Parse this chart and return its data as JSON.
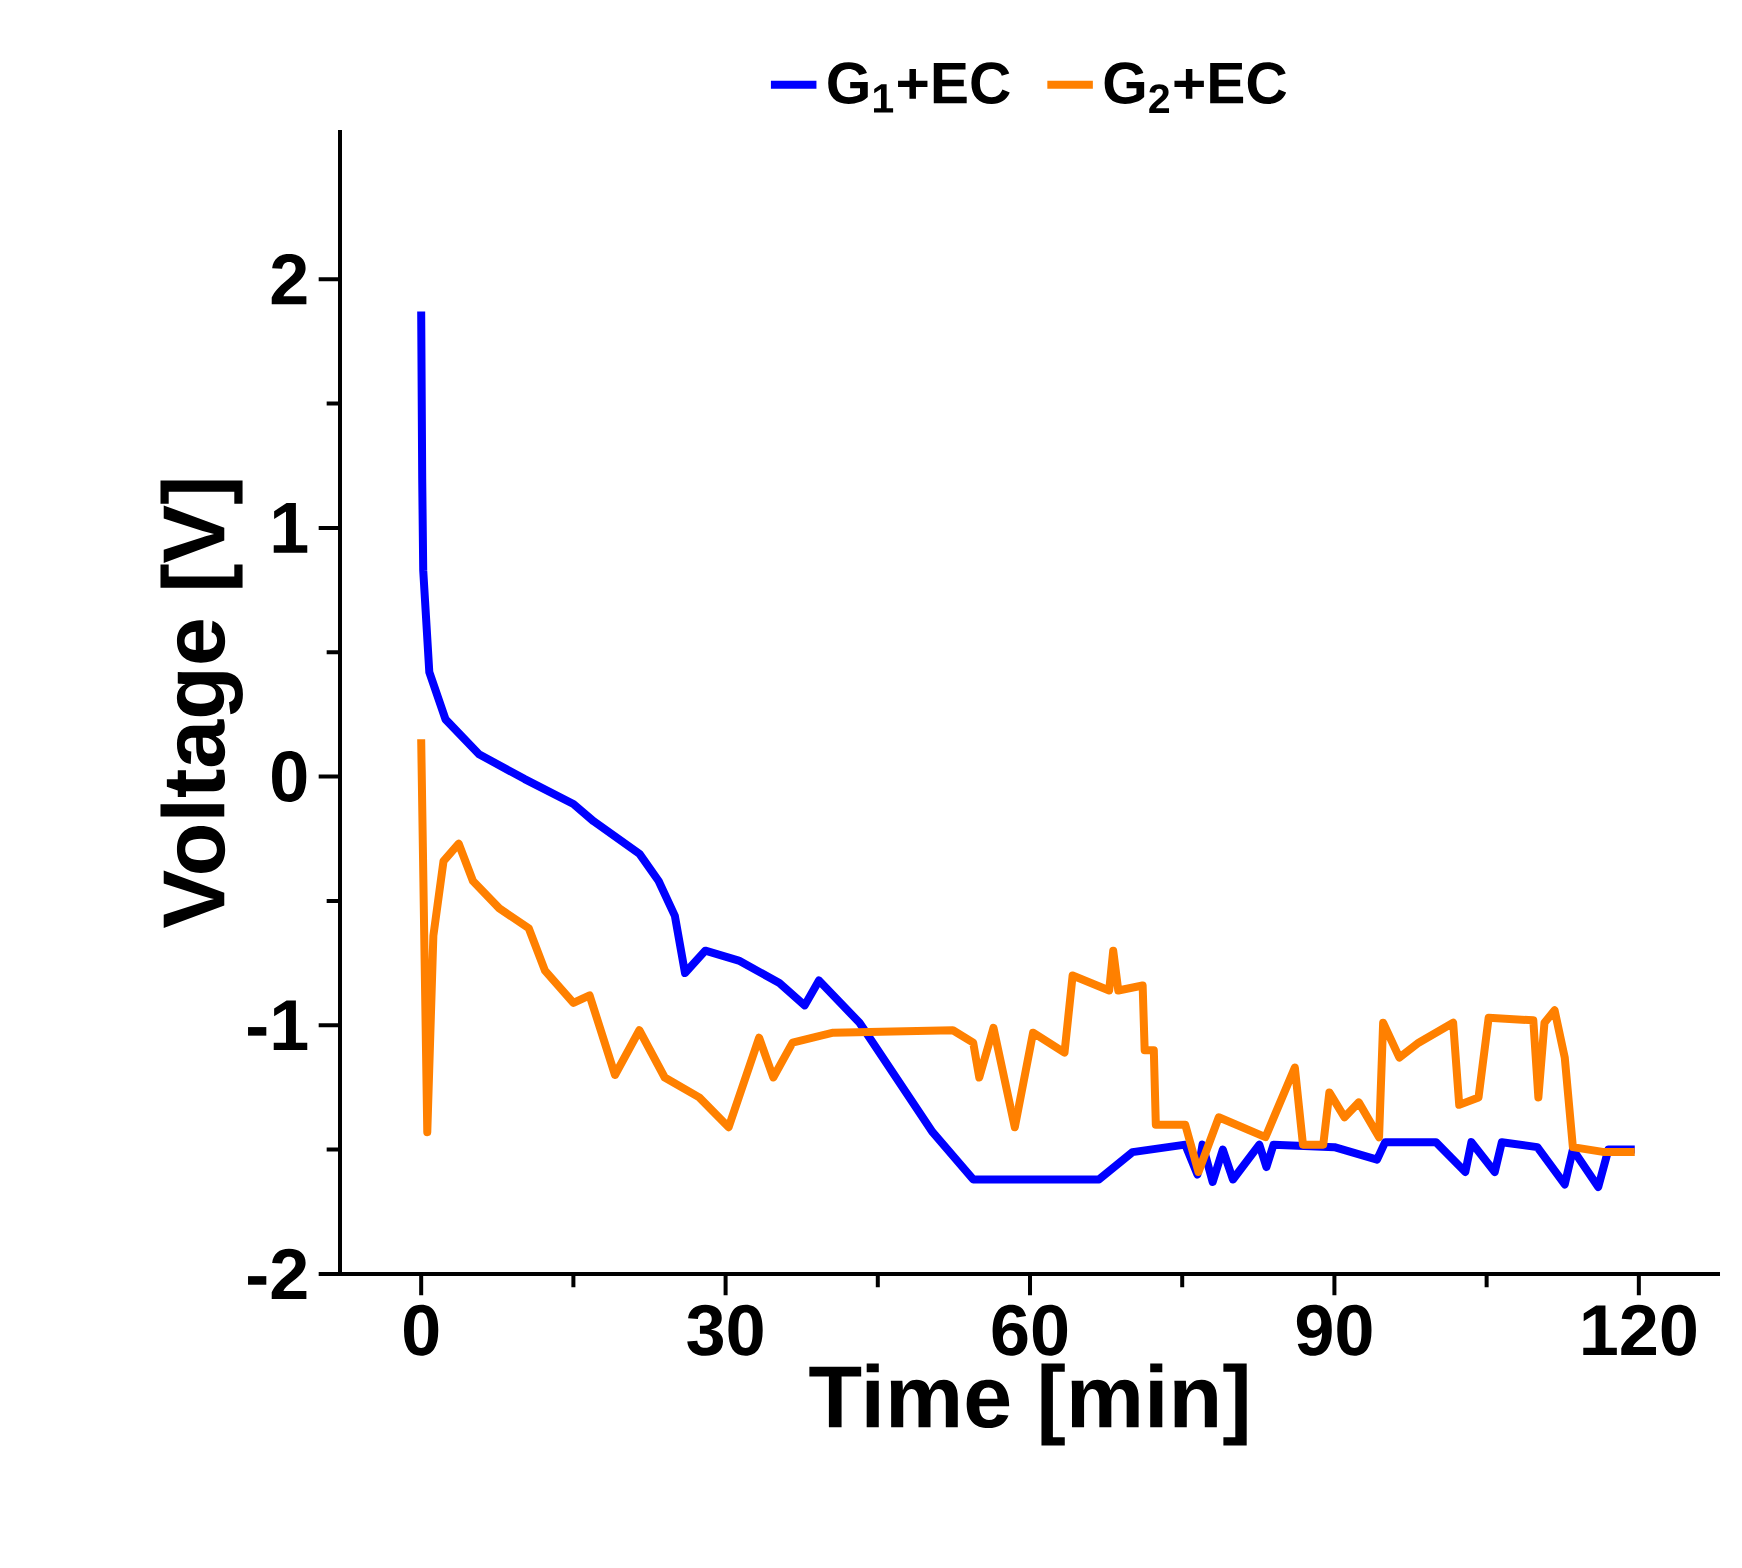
{
  "chart_data": {
    "type": "line",
    "xlabel": "Time [min]",
    "ylabel": "Voltage [V]",
    "xlim": [
      -8,
      128
    ],
    "ylim": [
      -2,
      2.6
    ],
    "xticks": [
      0,
      30,
      60,
      90,
      120
    ],
    "yticks": [
      -2,
      -1,
      0,
      1,
      2
    ],
    "legend": "top",
    "series": [
      {
        "name": "G$_{1}$+EC",
        "color": "#0000ff",
        "x": [
          0,
          0.1,
          0.2,
          0.8,
          2.4,
          5.7,
          10.2,
          15,
          17,
          21.5,
          23.4,
          25,
          26,
          28,
          31.3,
          35.3,
          37.8,
          39.2,
          43.2,
          50.4,
          54.4,
          63.4,
          66.8,
          70.1,
          75.3,
          76.5,
          77,
          78,
          79,
          80,
          82.6,
          83.3,
          84,
          90,
          94.2,
          95,
          100,
          102.9,
          103.5,
          105.8,
          106.5,
          110,
          112.7,
          113.5,
          116,
          117,
          119.6
        ],
        "values": [
          1.87,
          1.2,
          0.83,
          0.42,
          0.23,
          0.09,
          -0.01,
          -0.11,
          -0.18,
          -0.31,
          -0.42,
          -0.56,
          -0.79,
          -0.7,
          -0.74,
          -0.83,
          -0.92,
          -0.82,
          -0.99,
          -1.43,
          -1.62,
          -1.62,
          -1.62,
          -1.51,
          -1.48,
          -1.6,
          -1.48,
          -1.63,
          -1.5,
          -1.62,
          -1.48,
          -1.57,
          -1.48,
          -1.49,
          -1.54,
          -1.47,
          -1.47,
          -1.59,
          -1.47,
          -1.59,
          -1.47,
          -1.49,
          -1.64,
          -1.5,
          -1.65,
          -1.5,
          -1.5
        ]
      },
      {
        "name": "G$_{2}$+EC",
        "color": "#ff8000",
        "x": [
          0,
          0.6,
          1.2,
          2.2,
          3.7,
          5.1,
          7.7,
          10.6,
          12.2,
          15,
          16.6,
          19.1,
          21.5,
          24,
          27.4,
          30.3,
          33.3,
          34.7,
          36.6,
          40.6,
          52.4,
          54.4,
          55,
          56.4,
          58.5,
          60.3,
          63.4,
          64.2,
          67.8,
          68.2,
          68.7,
          71.1,
          71.3,
          72.2,
          72.4,
          75.3,
          76.6,
          78.6,
          83.2,
          86.1,
          86.9,
          88.9,
          89.5,
          91,
          92.4,
          94.4,
          94.8,
          96.4,
          98.3,
          101.7,
          102.3,
          104.2,
          105.2,
          109.6,
          110.1,
          110.7,
          111.7,
          112.7,
          113.5,
          116.6,
          119.6
        ],
        "values": [
          0.15,
          -1.43,
          -0.64,
          -0.34,
          -0.27,
          -0.42,
          -0.53,
          -0.61,
          -0.78,
          -0.91,
          -0.88,
          -1.2,
          -1.02,
          -1.21,
          -1.29,
          -1.41,
          -1.05,
          -1.21,
          -1.07,
          -1.03,
          -1.02,
          -1.07,
          -1.21,
          -1.01,
          -1.41,
          -1.03,
          -1.11,
          -0.8,
          -0.86,
          -0.7,
          -0.86,
          -0.84,
          -1.1,
          -1.1,
          -1.4,
          -1.4,
          -1.59,
          -1.37,
          -1.45,
          -1.17,
          -1.48,
          -1.48,
          -1.27,
          -1.37,
          -1.31,
          -1.45,
          -0.99,
          -1.13,
          -1.07,
          -0.99,
          -1.32,
          -1.29,
          -0.97,
          -0.98,
          -1.29,
          -0.99,
          -0.94,
          -1.13,
          -1.49,
          -1.51,
          -1.51
        ]
      }
    ]
  }
}
